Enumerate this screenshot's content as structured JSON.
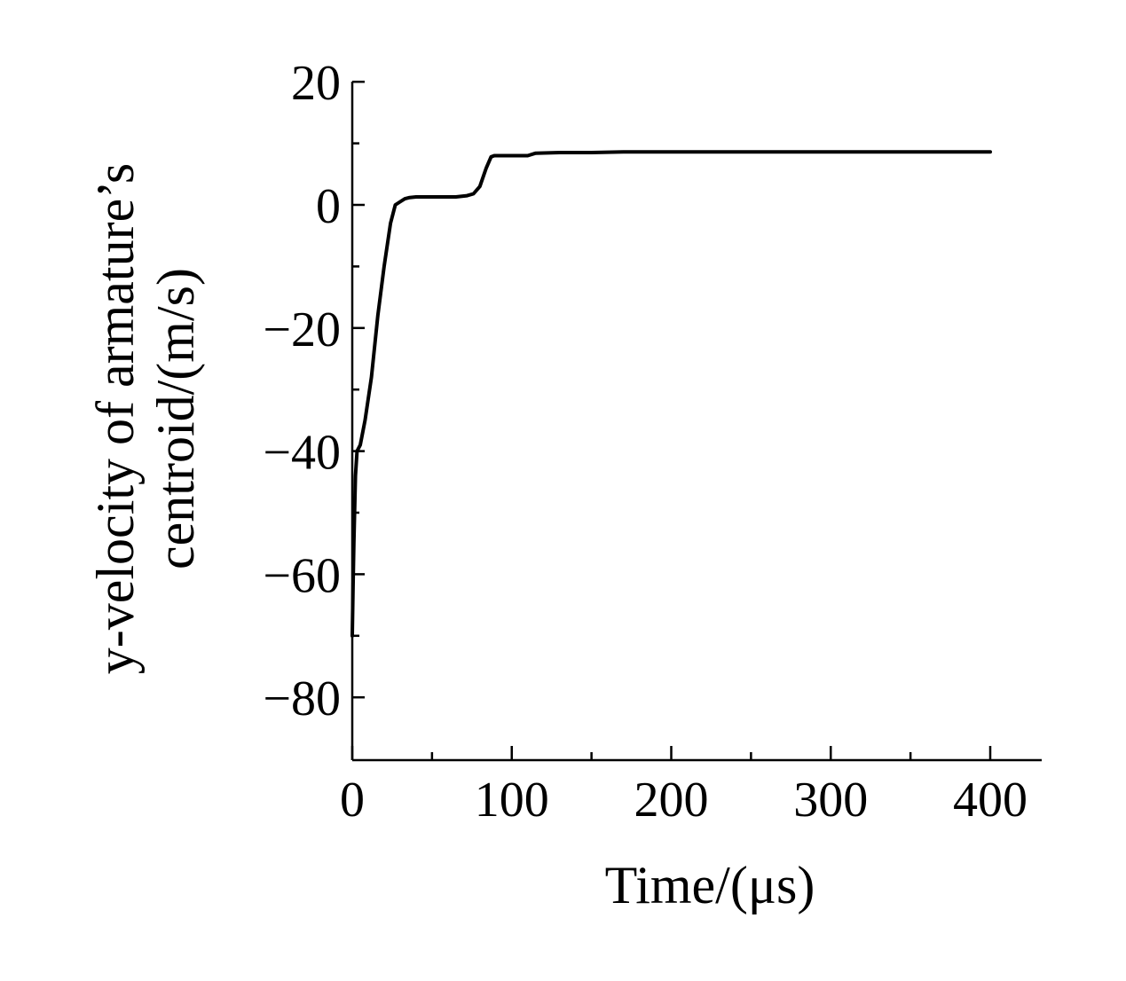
{
  "chart_data": {
    "type": "line",
    "title": "",
    "xlabel": "Time/(μs)",
    "ylabel_line1": "y-velocity of armature’s",
    "ylabel_line2": "centroid/(m/s)",
    "xlim": [
      0,
      430
    ],
    "ylim": [
      -90,
      20
    ],
    "xticks": [
      0,
      100,
      200,
      300,
      400
    ],
    "xtick_labels": [
      "0",
      "100",
      "200",
      "300",
      "400"
    ],
    "xminor": [
      50,
      150,
      250,
      350
    ],
    "yticks": [
      20,
      0,
      -20,
      -40,
      -60,
      -80
    ],
    "ytick_labels": [
      "20",
      "0",
      "−20",
      "−40",
      "−60",
      "−80"
    ],
    "yminor": [
      10,
      -10,
      -30,
      -50,
      -70
    ],
    "grid": false,
    "series": [
      {
        "color": "#000000",
        "x": [
          0,
          0.5,
          1,
          2,
          3,
          5,
          8,
          12,
          16,
          20,
          24,
          27,
          30,
          33,
          36,
          40,
          45,
          55,
          65,
          72,
          76,
          80,
          84,
          87,
          89,
          95,
          105,
          110,
          115,
          130,
          150,
          170,
          200,
          250,
          300,
          350,
          400
        ],
        "y": [
          -70,
          -62,
          -55,
          -44,
          -40,
          -39,
          -35,
          -28,
          -18,
          -10,
          -3,
          0,
          0.5,
          1,
          1.2,
          1.3,
          1.3,
          1.3,
          1.3,
          1.5,
          1.8,
          3,
          6,
          7.8,
          8,
          8,
          8,
          8,
          8.4,
          8.5,
          8.5,
          8.6,
          8.6,
          8.6,
          8.6,
          8.6,
          8.6
        ]
      }
    ]
  }
}
